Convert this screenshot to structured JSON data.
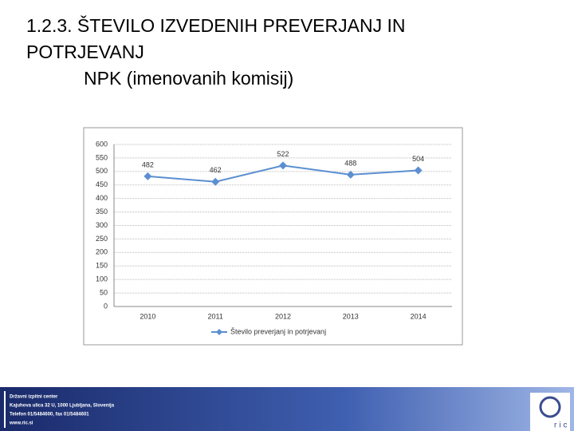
{
  "slide": {
    "title_lines": [
      "1.2.3. ŠTEVILO IZVEDENIH PREVERJANJ IN",
      "POTRJEVANJ",
      "NPK (imenovanih komisij)"
    ],
    "footer_lines": [
      "Državni izpitni center",
      "Kajuhova ulica 32 U, 1000 Ljubljana, Slovenija",
      "Telefon 01/5484600, fax 01/5484601",
      "www.ric.si"
    ],
    "logo_text": "ric"
  },
  "chart_data": {
    "type": "line",
    "categories": [
      "2010",
      "2011",
      "2012",
      "2013",
      "2014"
    ],
    "series": [
      {
        "name": "Število preverjanj in potrjevanj",
        "color": "#5b8fd0",
        "values": [
          482,
          462,
          522,
          488,
          504
        ]
      }
    ],
    "ylim": [
      0,
      600
    ],
    "yticks": [
      0,
      50,
      100,
      150,
      200,
      250,
      300,
      350,
      400,
      450,
      500,
      550,
      600
    ],
    "grid": true,
    "legend": "bottom"
  }
}
